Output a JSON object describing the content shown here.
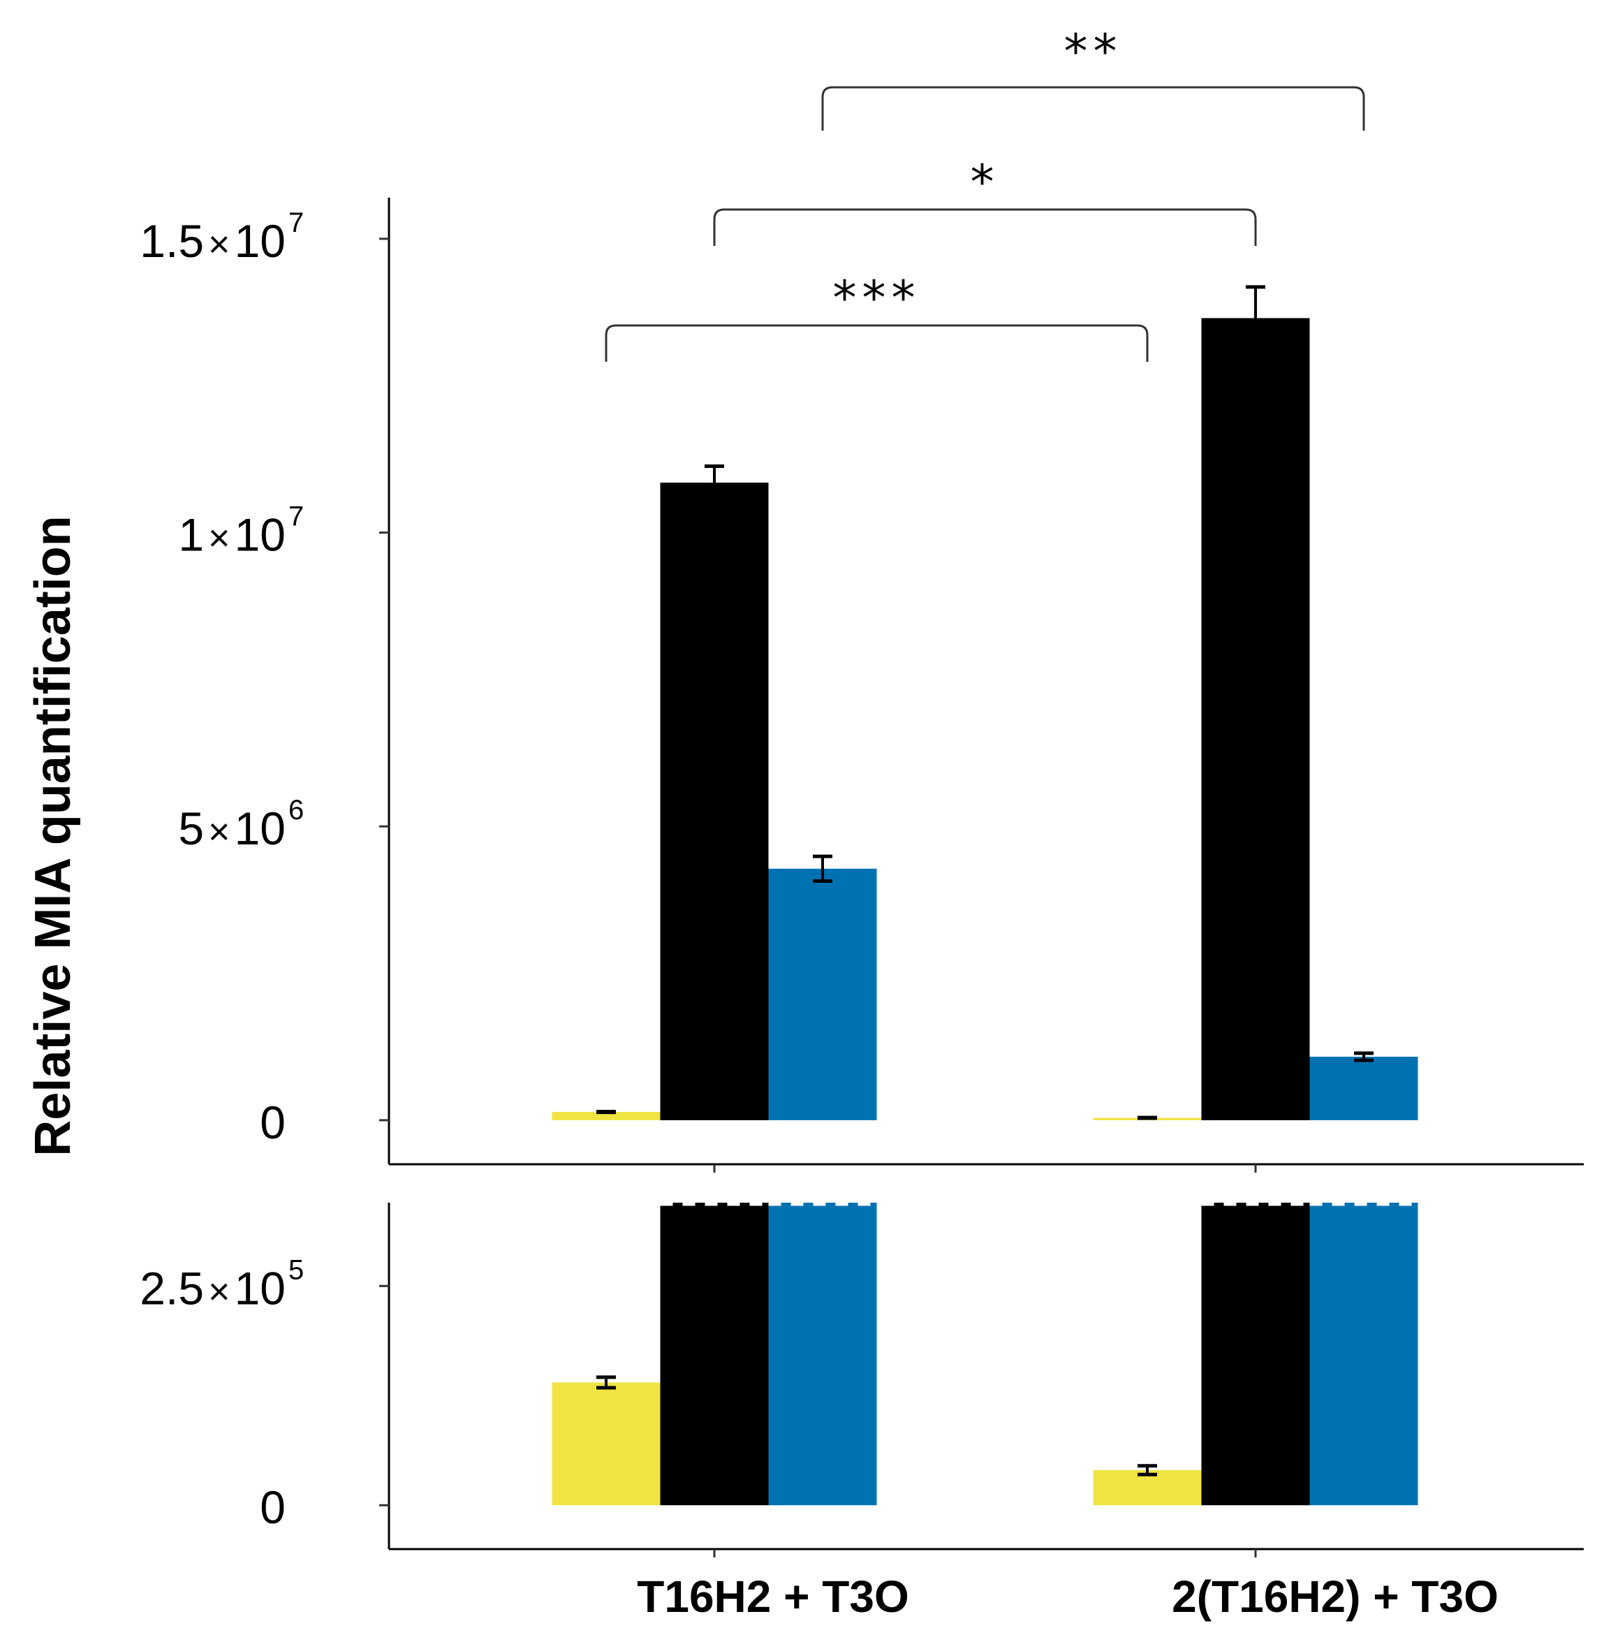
{
  "chart_data": {
    "type": "bar",
    "ylabel": "Relative MIA quantification",
    "categories": [
      "T16H2 + T3O",
      "2(T16H2) + T3O"
    ],
    "series": [
      {
        "name": "series-yellow",
        "color": "#F0E442",
        "values": [
          140000,
          40000
        ],
        "errors": [
          6000,
          5000
        ]
      },
      {
        "name": "series-black",
        "color": "#000000",
        "values": [
          10850000,
          13650000
        ],
        "errors": [
          280000,
          530000
        ]
      },
      {
        "name": "series-blue",
        "color": "#0072B2",
        "values": [
          4280000,
          1080000
        ],
        "errors": [
          210000,
          60000
        ]
      }
    ],
    "panels": [
      {
        "name": "upper",
        "ylim": [
          -750000,
          15700000
        ],
        "ticks": [
          {
            "value": 0,
            "mantissa": "0",
            "times": "",
            "base": "",
            "exp": ""
          },
          {
            "value": 5000000,
            "mantissa": "5",
            "times": "×",
            "base": "10",
            "exp": "6"
          },
          {
            "value": 10000000,
            "mantissa": "1",
            "times": "×",
            "base": "10",
            "exp": "7"
          },
          {
            "value": 15000000,
            "mantissa": "1.5",
            "times": "×",
            "base": "10",
            "exp": "7"
          }
        ]
      },
      {
        "name": "lower",
        "ylim": [
          -50000,
          345000
        ],
        "break_at": 345000,
        "ticks": [
          {
            "value": 0,
            "mantissa": "0",
            "times": "",
            "base": "",
            "exp": ""
          },
          {
            "value": 250000,
            "mantissa": "2.5",
            "times": "×",
            "base": "10",
            "exp": "5"
          }
        ]
      }
    ],
    "significance": [
      {
        "label": "***",
        "from": [
          0,
          0
        ],
        "to": [
          1,
          0
        ]
      },
      {
        "label": "*",
        "from": [
          0,
          1
        ],
        "to": [
          1,
          1
        ]
      },
      {
        "label": "**",
        "from": [
          0,
          2
        ],
        "to": [
          1,
          2
        ]
      }
    ]
  }
}
